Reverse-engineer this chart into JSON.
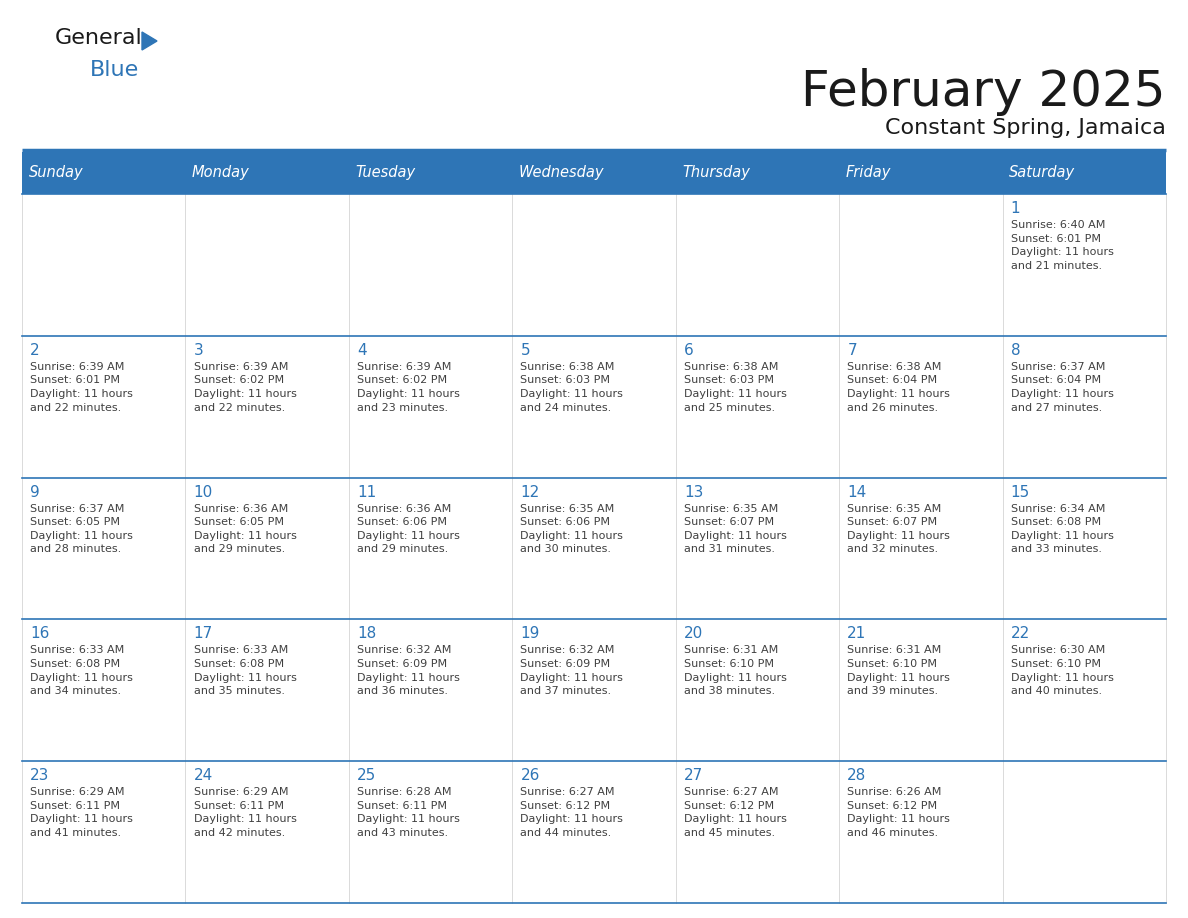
{
  "title": "February 2025",
  "subtitle": "Constant Spring, Jamaica",
  "header_bg": "#2E75B6",
  "header_text": "#FFFFFF",
  "cell_bg": "#FFFFFF",
  "cell_border_color": "#2E75B6",
  "day_number_color": "#2E75B6",
  "info_text_color": "#404040",
  "days_of_week": [
    "Sunday",
    "Monday",
    "Tuesday",
    "Wednesday",
    "Thursday",
    "Friday",
    "Saturday"
  ],
  "weeks": [
    [
      {
        "day": null,
        "info": null
      },
      {
        "day": null,
        "info": null
      },
      {
        "day": null,
        "info": null
      },
      {
        "day": null,
        "info": null
      },
      {
        "day": null,
        "info": null
      },
      {
        "day": null,
        "info": null
      },
      {
        "day": 1,
        "info": "Sunrise: 6:40 AM\nSunset: 6:01 PM\nDaylight: 11 hours\nand 21 minutes."
      }
    ],
    [
      {
        "day": 2,
        "info": "Sunrise: 6:39 AM\nSunset: 6:01 PM\nDaylight: 11 hours\nand 22 minutes."
      },
      {
        "day": 3,
        "info": "Sunrise: 6:39 AM\nSunset: 6:02 PM\nDaylight: 11 hours\nand 22 minutes."
      },
      {
        "day": 4,
        "info": "Sunrise: 6:39 AM\nSunset: 6:02 PM\nDaylight: 11 hours\nand 23 minutes."
      },
      {
        "day": 5,
        "info": "Sunrise: 6:38 AM\nSunset: 6:03 PM\nDaylight: 11 hours\nand 24 minutes."
      },
      {
        "day": 6,
        "info": "Sunrise: 6:38 AM\nSunset: 6:03 PM\nDaylight: 11 hours\nand 25 minutes."
      },
      {
        "day": 7,
        "info": "Sunrise: 6:38 AM\nSunset: 6:04 PM\nDaylight: 11 hours\nand 26 minutes."
      },
      {
        "day": 8,
        "info": "Sunrise: 6:37 AM\nSunset: 6:04 PM\nDaylight: 11 hours\nand 27 minutes."
      }
    ],
    [
      {
        "day": 9,
        "info": "Sunrise: 6:37 AM\nSunset: 6:05 PM\nDaylight: 11 hours\nand 28 minutes."
      },
      {
        "day": 10,
        "info": "Sunrise: 6:36 AM\nSunset: 6:05 PM\nDaylight: 11 hours\nand 29 minutes."
      },
      {
        "day": 11,
        "info": "Sunrise: 6:36 AM\nSunset: 6:06 PM\nDaylight: 11 hours\nand 29 minutes."
      },
      {
        "day": 12,
        "info": "Sunrise: 6:35 AM\nSunset: 6:06 PM\nDaylight: 11 hours\nand 30 minutes."
      },
      {
        "day": 13,
        "info": "Sunrise: 6:35 AM\nSunset: 6:07 PM\nDaylight: 11 hours\nand 31 minutes."
      },
      {
        "day": 14,
        "info": "Sunrise: 6:35 AM\nSunset: 6:07 PM\nDaylight: 11 hours\nand 32 minutes."
      },
      {
        "day": 15,
        "info": "Sunrise: 6:34 AM\nSunset: 6:08 PM\nDaylight: 11 hours\nand 33 minutes."
      }
    ],
    [
      {
        "day": 16,
        "info": "Sunrise: 6:33 AM\nSunset: 6:08 PM\nDaylight: 11 hours\nand 34 minutes."
      },
      {
        "day": 17,
        "info": "Sunrise: 6:33 AM\nSunset: 6:08 PM\nDaylight: 11 hours\nand 35 minutes."
      },
      {
        "day": 18,
        "info": "Sunrise: 6:32 AM\nSunset: 6:09 PM\nDaylight: 11 hours\nand 36 minutes."
      },
      {
        "day": 19,
        "info": "Sunrise: 6:32 AM\nSunset: 6:09 PM\nDaylight: 11 hours\nand 37 minutes."
      },
      {
        "day": 20,
        "info": "Sunrise: 6:31 AM\nSunset: 6:10 PM\nDaylight: 11 hours\nand 38 minutes."
      },
      {
        "day": 21,
        "info": "Sunrise: 6:31 AM\nSunset: 6:10 PM\nDaylight: 11 hours\nand 39 minutes."
      },
      {
        "day": 22,
        "info": "Sunrise: 6:30 AM\nSunset: 6:10 PM\nDaylight: 11 hours\nand 40 minutes."
      }
    ],
    [
      {
        "day": 23,
        "info": "Sunrise: 6:29 AM\nSunset: 6:11 PM\nDaylight: 11 hours\nand 41 minutes."
      },
      {
        "day": 24,
        "info": "Sunrise: 6:29 AM\nSunset: 6:11 PM\nDaylight: 11 hours\nand 42 minutes."
      },
      {
        "day": 25,
        "info": "Sunrise: 6:28 AM\nSunset: 6:11 PM\nDaylight: 11 hours\nand 43 minutes."
      },
      {
        "day": 26,
        "info": "Sunrise: 6:27 AM\nSunset: 6:12 PM\nDaylight: 11 hours\nand 44 minutes."
      },
      {
        "day": 27,
        "info": "Sunrise: 6:27 AM\nSunset: 6:12 PM\nDaylight: 11 hours\nand 45 minutes."
      },
      {
        "day": 28,
        "info": "Sunrise: 6:26 AM\nSunset: 6:12 PM\nDaylight: 11 hours\nand 46 minutes."
      },
      {
        "day": null,
        "info": null
      }
    ]
  ],
  "logo_color_general": "#1a1a1a",
  "logo_color_blue": "#2E75B6",
  "logo_triangle_color": "#2E75B6",
  "fig_width": 11.88,
  "fig_height": 9.18,
  "dpi": 100
}
